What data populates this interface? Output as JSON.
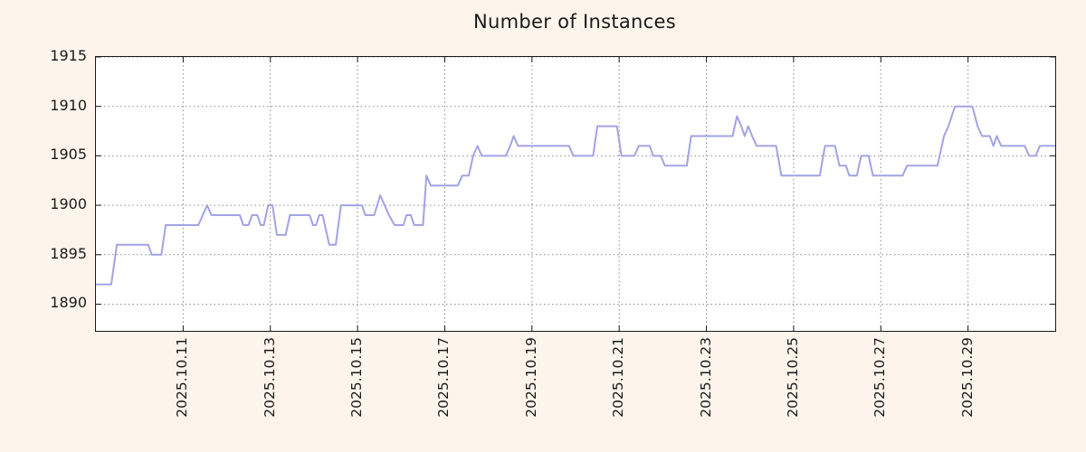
{
  "chart_data": {
    "type": "line",
    "title": "Number of Instances",
    "xlabel": "",
    "ylabel": "",
    "grid": "dotted",
    "legend": "none",
    "colors": {
      "line": "#a2a2e6",
      "background": "#fdf5ec",
      "plot_background": "#ffffff",
      "grid": "#8a8a8a",
      "axis": "#1a1a1a"
    },
    "ylim": [
      1887.3,
      1915
    ],
    "y_ticks": [
      1890,
      1895,
      1900,
      1905,
      1910,
      1915
    ],
    "x_domain_days": [
      0,
      22
    ],
    "x_ticks": [
      {
        "day": 2,
        "label": "2025.10.11"
      },
      {
        "day": 4,
        "label": "2025.10.13"
      },
      {
        "day": 6,
        "label": "2025.10.15"
      },
      {
        "day": 8,
        "label": "2025.10.17"
      },
      {
        "day": 10,
        "label": "2025.10.19"
      },
      {
        "day": 12,
        "label": "2025.10.21"
      },
      {
        "day": 14,
        "label": "2025.10.23"
      },
      {
        "day": 16,
        "label": "2025.10.25"
      },
      {
        "day": 18,
        "label": "2025.10.27"
      },
      {
        "day": 20,
        "label": "2025.10.29"
      }
    ],
    "series": [
      {
        "name": "instances",
        "points": [
          [
            0.0,
            1892
          ],
          [
            0.35,
            1892
          ],
          [
            0.48,
            1896
          ],
          [
            1.2,
            1896
          ],
          [
            1.28,
            1895
          ],
          [
            1.5,
            1895
          ],
          [
            1.6,
            1898
          ],
          [
            2.35,
            1898
          ],
          [
            2.45,
            1899
          ],
          [
            2.55,
            1900
          ],
          [
            2.65,
            1899
          ],
          [
            3.3,
            1899
          ],
          [
            3.38,
            1898
          ],
          [
            3.5,
            1898
          ],
          [
            3.58,
            1899
          ],
          [
            3.7,
            1899
          ],
          [
            3.78,
            1898
          ],
          [
            3.85,
            1898
          ],
          [
            3.95,
            1900
          ],
          [
            4.05,
            1900
          ],
          [
            4.15,
            1897
          ],
          [
            4.35,
            1897
          ],
          [
            4.45,
            1899
          ],
          [
            4.9,
            1899
          ],
          [
            4.98,
            1898
          ],
          [
            5.05,
            1898
          ],
          [
            5.12,
            1899
          ],
          [
            5.2,
            1899
          ],
          [
            5.35,
            1896
          ],
          [
            5.5,
            1896
          ],
          [
            5.62,
            1900
          ],
          [
            6.1,
            1900
          ],
          [
            6.18,
            1899
          ],
          [
            6.38,
            1899
          ],
          [
            6.45,
            1900
          ],
          [
            6.52,
            1901
          ],
          [
            6.62,
            1900
          ],
          [
            6.72,
            1899
          ],
          [
            6.85,
            1898
          ],
          [
            7.05,
            1898
          ],
          [
            7.12,
            1899
          ],
          [
            7.22,
            1899
          ],
          [
            7.3,
            1898
          ],
          [
            7.5,
            1898
          ],
          [
            7.58,
            1903
          ],
          [
            7.68,
            1902
          ],
          [
            8.3,
            1902
          ],
          [
            8.4,
            1903
          ],
          [
            8.55,
            1903
          ],
          [
            8.65,
            1905
          ],
          [
            8.75,
            1906
          ],
          [
            8.85,
            1905
          ],
          [
            9.4,
            1905
          ],
          [
            9.5,
            1906
          ],
          [
            9.58,
            1907
          ],
          [
            9.68,
            1906
          ],
          [
            10.85,
            1906
          ],
          [
            10.95,
            1905
          ],
          [
            11.4,
            1905
          ],
          [
            11.5,
            1908
          ],
          [
            11.95,
            1908
          ],
          [
            12.05,
            1905
          ],
          [
            12.35,
            1905
          ],
          [
            12.45,
            1906
          ],
          [
            12.7,
            1906
          ],
          [
            12.78,
            1905
          ],
          [
            12.95,
            1905
          ],
          [
            13.05,
            1904
          ],
          [
            13.55,
            1904
          ],
          [
            13.65,
            1907
          ],
          [
            14.6,
            1907
          ],
          [
            14.7,
            1909
          ],
          [
            14.8,
            1908
          ],
          [
            14.88,
            1907
          ],
          [
            14.96,
            1908
          ],
          [
            15.05,
            1907
          ],
          [
            15.15,
            1906
          ],
          [
            15.6,
            1906
          ],
          [
            15.72,
            1903
          ],
          [
            16.6,
            1903
          ],
          [
            16.72,
            1906
          ],
          [
            16.95,
            1906
          ],
          [
            17.05,
            1904
          ],
          [
            17.2,
            1904
          ],
          [
            17.28,
            1903
          ],
          [
            17.45,
            1903
          ],
          [
            17.55,
            1905
          ],
          [
            17.72,
            1905
          ],
          [
            17.82,
            1903
          ],
          [
            18.5,
            1903
          ],
          [
            18.6,
            1904
          ],
          [
            19.3,
            1904
          ],
          [
            19.45,
            1907
          ],
          [
            19.55,
            1908
          ],
          [
            19.7,
            1910
          ],
          [
            20.1,
            1910
          ],
          [
            20.22,
            1908
          ],
          [
            20.32,
            1907
          ],
          [
            20.5,
            1907
          ],
          [
            20.58,
            1906
          ],
          [
            20.66,
            1907
          ],
          [
            20.76,
            1906
          ],
          [
            21.3,
            1906
          ],
          [
            21.4,
            1905
          ],
          [
            21.55,
            1905
          ],
          [
            21.65,
            1906
          ],
          [
            22.0,
            1906
          ]
        ]
      }
    ]
  }
}
